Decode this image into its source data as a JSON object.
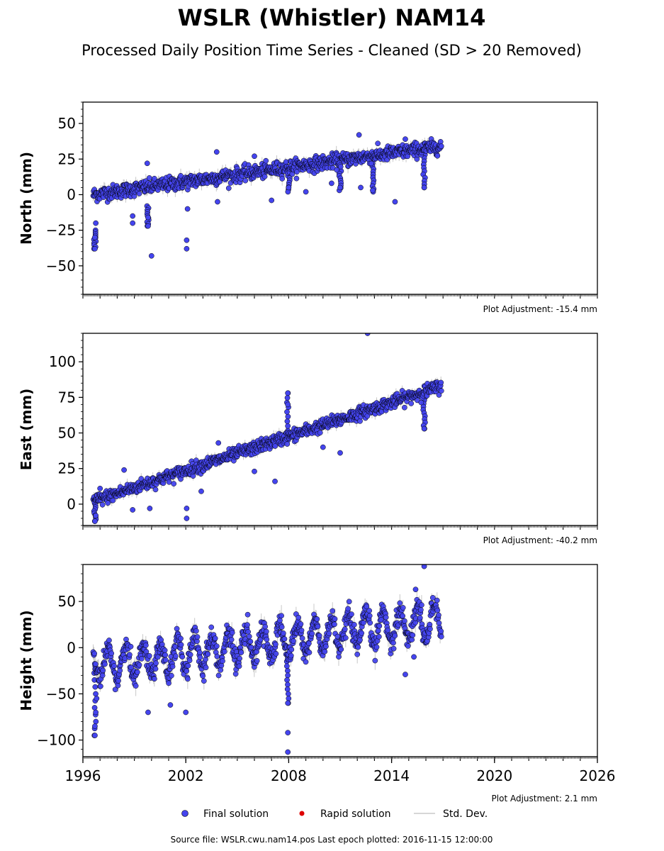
{
  "title": "WSLR (Whistler) NAM14",
  "subtitle": "Processed Daily Position Time Series - Cleaned (SD > 20 Removed)",
  "colors": {
    "final": "#4444ee",
    "final_edge": "#000000",
    "rapid": "#dd0000",
    "stddev": "#c8c8c8",
    "axis": "#000000"
  },
  "chart_data": [
    {
      "type": "scatter",
      "ylabel": "North (mm)",
      "adjustment": "Plot Adjustment: -15.4 mm",
      "xlim": [
        1996,
        2026
      ],
      "ylim": [
        -70,
        65
      ],
      "yticks": [
        -50,
        -25,
        0,
        25,
        50
      ],
      "trend": [
        [
          1996.6,
          0
        ],
        [
          2016.9,
          34
        ]
      ],
      "scatter_sd": 2.5,
      "outliers": [
        [
          1996.7,
          -38
        ],
        [
          1996.7,
          -30
        ],
        [
          1996.75,
          -20
        ],
        [
          1998.9,
          -20
        ],
        [
          1998.9,
          -15
        ],
        [
          1999.8,
          -22
        ],
        [
          1999.8,
          -16
        ],
        [
          1999.75,
          22
        ],
        [
          2000.0,
          -43
        ],
        [
          2002.05,
          -38
        ],
        [
          2002.05,
          -32
        ],
        [
          2002.1,
          -10
        ],
        [
          2003.8,
          30
        ],
        [
          2003.85,
          -5
        ],
        [
          2006.0,
          27
        ],
        [
          2007.0,
          -4
        ],
        [
          2008.0,
          5
        ],
        [
          2009.0,
          2
        ],
        [
          2010.5,
          8
        ],
        [
          2011.0,
          5
        ],
        [
          2012.1,
          42
        ],
        [
          2012.2,
          5
        ],
        [
          2012.9,
          3
        ],
        [
          2014.2,
          -5
        ],
        [
          2014.8,
          39
        ],
        [
          2015.9,
          5
        ]
      ],
      "spikes_down": [
        [
          1996.7,
          -25,
          -38
        ],
        [
          1999.8,
          -8,
          -22
        ],
        [
          2008.0,
          18,
          2
        ],
        [
          2011.0,
          20,
          3
        ],
        [
          2012.9,
          22,
          2
        ],
        [
          2015.9,
          28,
          5
        ]
      ]
    },
    {
      "type": "scatter",
      "ylabel": "East (mm)",
      "adjustment": "Plot Adjustment: -40.2 mm",
      "xlim": [
        1996,
        2026
      ],
      "ylim": [
        -15,
        120
      ],
      "yticks": [
        0,
        25,
        50,
        75,
        100
      ],
      "trend": [
        [
          1996.6,
          2
        ],
        [
          2016.9,
          83
        ]
      ],
      "scatter_sd": 2.2,
      "outliers": [
        [
          1996.7,
          -12
        ],
        [
          1996.75,
          -8
        ],
        [
          1997.0,
          11
        ],
        [
          1998.4,
          24
        ],
        [
          1998.9,
          -4
        ],
        [
          1999.9,
          -3
        ],
        [
          2002.05,
          -10
        ],
        [
          2002.05,
          -3
        ],
        [
          2002.9,
          9
        ],
        [
          2003.9,
          43
        ],
        [
          2006.0,
          23
        ],
        [
          2007.2,
          16
        ],
        [
          2007.95,
          78
        ],
        [
          2007.95,
          70
        ],
        [
          2010.0,
          40
        ],
        [
          2011.0,
          36
        ],
        [
          2012.6,
          120
        ],
        [
          2015.9,
          53
        ]
      ],
      "spikes_down": [
        [
          1996.7,
          2,
          -12
        ],
        [
          2007.95,
          45,
          78
        ],
        [
          2015.9,
          75,
          53
        ]
      ]
    },
    {
      "type": "scatter",
      "ylabel": "Height (mm)",
      "adjustment": "Plot Adjustment: 2.1 mm",
      "xlim": [
        1996,
        2026
      ],
      "ylim": [
        -118,
        90
      ],
      "yticks": [
        -100,
        -50,
        0,
        50
      ],
      "xticks": [
        1996,
        2002,
        2008,
        2014,
        2020,
        2026
      ],
      "trend": [
        [
          1996.6,
          -20
        ],
        [
          2016.9,
          30
        ]
      ],
      "seasonal_amplitude": 17,
      "scatter_sd": 6,
      "outliers": [
        [
          1996.7,
          -95
        ],
        [
          1996.7,
          -85
        ],
        [
          1996.75,
          -70
        ],
        [
          1996.8,
          -55
        ],
        [
          1999.8,
          -70
        ],
        [
          2001.1,
          -62
        ],
        [
          2002.0,
          -70
        ],
        [
          2007.95,
          -92
        ],
        [
          2007.95,
          -113
        ],
        [
          2007.95,
          -60
        ],
        [
          2014.8,
          -29
        ],
        [
          2015.3,
          -10
        ],
        [
          2015.9,
          88
        ],
        [
          2015.4,
          63
        ]
      ],
      "spikes_down": [
        [
          1996.7,
          -20,
          -95
        ],
        [
          2007.95,
          -10,
          -60
        ]
      ]
    }
  ],
  "legend": {
    "final": "Final solution",
    "rapid": "Rapid solution",
    "stddev": "Std. Dev."
  },
  "footer": "Source file: WSLR.cwu.nam14.pos  Last epoch plotted: 2016-11-15 12:00:00"
}
